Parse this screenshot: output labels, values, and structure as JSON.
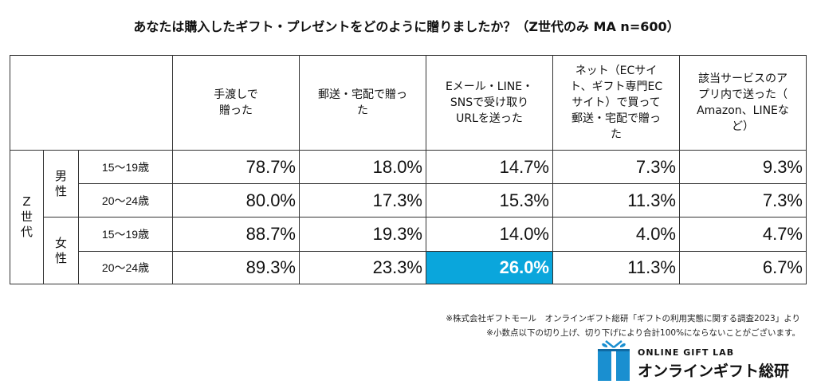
{
  "chart_data": {
    "type": "table",
    "title": "あなたは購入したギフト・プレゼントをどのように贈りましたか？（Z世代のみ MA n=600）",
    "columns": [
      [
        "手渡しで",
        "贈った"
      ],
      [
        "郵送・宅配で贈っ",
        "た"
      ],
      [
        "Eメール・LINE・",
        "SNSで受け取り",
        "URLを送った"
      ],
      [
        "ネット（ECサイ",
        "ト、ギフト専門EC",
        "サイト）で買って",
        "郵送・宅配で贈っ",
        "た"
      ],
      [
        "該当サービスのア",
        "プリ内で送った（",
        "Amazon、LINEな",
        "ど）"
      ]
    ],
    "segment": [
      "Z",
      "世",
      "代"
    ],
    "groups": [
      {
        "label": [
          "男",
          "性"
        ],
        "rows": [
          {
            "age": "15〜19歳",
            "values": [
              "78.7%",
              "18.0%",
              "14.7%",
              "7.3%",
              "9.3%"
            ]
          },
          {
            "age": "20〜24歳",
            "values": [
              "80.0%",
              "17.3%",
              "15.3%",
              "11.3%",
              "7.3%"
            ]
          }
        ]
      },
      {
        "label": [
          "女",
          "性"
        ],
        "rows": [
          {
            "age": "15〜19歳",
            "values": [
              "88.7%",
              "19.3%",
              "14.0%",
              "4.0%",
              "4.7%"
            ]
          },
          {
            "age": "20〜24歳",
            "values": [
              "89.3%",
              "23.3%",
              "26.0%",
              "11.3%",
              "6.7%"
            ]
          }
        ]
      }
    ],
    "highlight": {
      "group": 1,
      "row": 1,
      "col": 2,
      "color": "#0aa6dc"
    }
  },
  "notes": [
    "※株式会社ギフトモール　オンラインギフト総研「ギフトの利用実態に関する調査2023」より",
    "※小数点以下の切り上げ、切り下げにより合計100%にならないことがございます。"
  ],
  "logo": {
    "top_text": "ONLINE GIFT LAB",
    "main_text": "オンラインギフト総研",
    "color": "#1a8fd0"
  }
}
